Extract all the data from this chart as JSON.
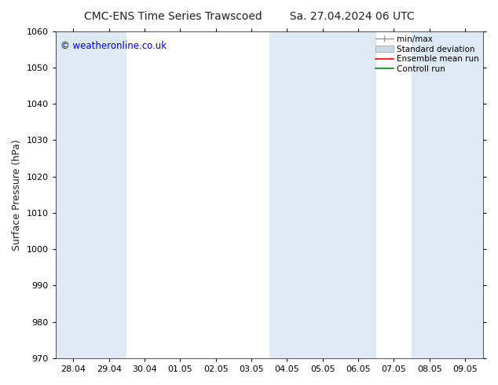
{
  "title_left": "CMC-ENS Time Series Trawscoed",
  "title_right": "Sa. 27.04.2024 06 UTC",
  "ylabel": "Surface Pressure (hPa)",
  "ylim": [
    970,
    1060
  ],
  "yticks": [
    970,
    980,
    990,
    1000,
    1010,
    1020,
    1030,
    1040,
    1050,
    1060
  ],
  "x_labels": [
    "28.04",
    "29.04",
    "30.04",
    "01.05",
    "02.05",
    "03.05",
    "04.05",
    "05.05",
    "06.05",
    "07.05",
    "08.05",
    "09.05"
  ],
  "n_xticks": 12,
  "shaded_indices": [
    0,
    1,
    6,
    7,
    8,
    10,
    11
  ],
  "shade_color": "#ddeaf5",
  "background_color": "#ffffff",
  "plot_bg_color": "#ffffff",
  "copyright_text": "© weatheronline.co.uk",
  "copyright_color": "#0000cc",
  "legend_entries": [
    "min/max",
    "Standard deviation",
    "Ensemble mean run",
    "Controll run"
  ],
  "legend_line_color": "#999999",
  "legend_std_color": "#c8daea",
  "legend_ens_color": "#ff0000",
  "legend_ctrl_color": "#008800",
  "title_fontsize": 10,
  "ylabel_fontsize": 9,
  "tick_fontsize": 8,
  "legend_fontsize": 7.5
}
